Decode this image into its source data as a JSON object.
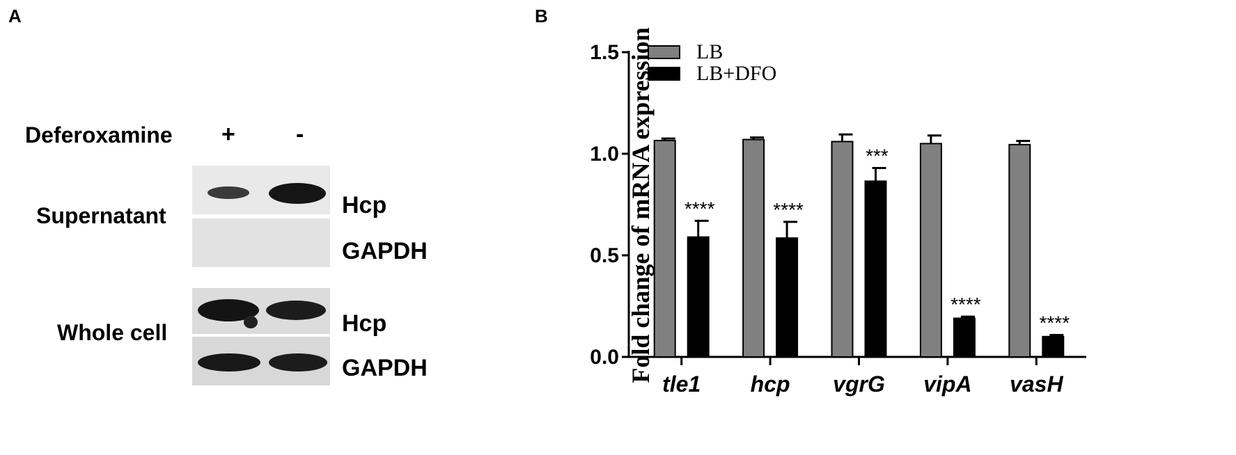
{
  "panel_a": {
    "letter": "A",
    "treatment_label": "Deferoxamine",
    "lane_plus": "+",
    "lane_minus": "-",
    "fraction_supernatant": "Supernatant",
    "fraction_whole_cell": "Whole cell",
    "protein_hcp": "Hcp",
    "protein_gapdh": "GAPDH"
  },
  "panel_b": {
    "letter": "B"
  },
  "chart_data": {
    "type": "bar",
    "title": "",
    "xlabel": "",
    "ylabel": "Fold change of mRNA expression",
    "ylim": [
      0,
      1.5
    ],
    "yticks": [
      "0.0",
      "0.5",
      "1.0",
      "1.5"
    ],
    "categories": [
      "tle1",
      "hcp",
      "vgrG",
      "vipA",
      "vasH"
    ],
    "series": [
      {
        "name": "LB",
        "color": "#808080",
        "values": [
          1.065,
          1.07,
          1.06,
          1.05,
          1.045
        ],
        "errors": [
          0.01,
          0.01,
          0.035,
          0.04,
          0.018
        ]
      },
      {
        "name": "LB+DFO",
        "color": "#000000",
        "values": [
          0.59,
          0.585,
          0.865,
          0.19,
          0.1
        ],
        "errors": [
          0.08,
          0.08,
          0.065,
          0.008,
          0.008
        ]
      }
    ],
    "significance": [
      "****",
      "****",
      "***",
      "****",
      "****"
    ],
    "legend_position": "top-left",
    "grid": false
  }
}
